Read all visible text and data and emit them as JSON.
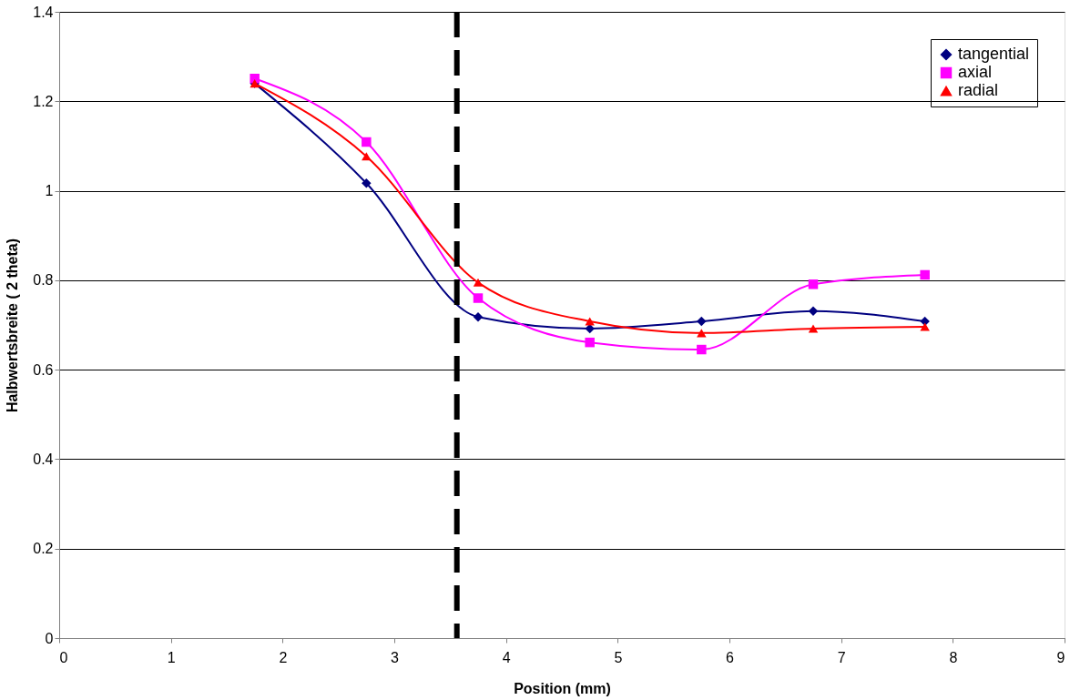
{
  "chart_data": {
    "type": "line",
    "xlabel": "Position (mm)",
    "ylabel": "Halbwertsbreite ( 2 theta)",
    "x": [
      1.75,
      2.75,
      3.75,
      4.75,
      5.75,
      6.75,
      7.75
    ],
    "series": [
      {
        "name": "tangential",
        "color": "#000080",
        "marker": "diamond",
        "values": [
          1.24,
          1.017,
          0.718,
          0.692,
          0.708,
          0.731,
          0.708
        ]
      },
      {
        "name": "axial",
        "color": "#ff00ff",
        "marker": "square",
        "values": [
          1.251,
          1.109,
          0.76,
          0.661,
          0.645,
          0.791,
          0.812
        ]
      },
      {
        "name": "radial",
        "color": "#ff0000",
        "marker": "triangle",
        "values": [
          1.24,
          1.077,
          0.795,
          0.708,
          0.682,
          0.692,
          0.696
        ]
      }
    ],
    "xlim": [
      0,
      9
    ],
    "xticks": [
      0,
      1,
      2,
      3,
      4,
      5,
      6,
      7,
      8,
      9
    ],
    "ylim": [
      0,
      1.4
    ],
    "yticks": [
      0,
      0.2,
      0.4,
      0.6,
      0.8,
      1,
      1.2,
      1.4
    ],
    "grid": "y",
    "legend": "top right",
    "line_style": "solid",
    "ref_lines": [
      {
        "axis": "x",
        "value": 3.56,
        "color": "#000000",
        "line_style": "dashed"
      }
    ]
  }
}
